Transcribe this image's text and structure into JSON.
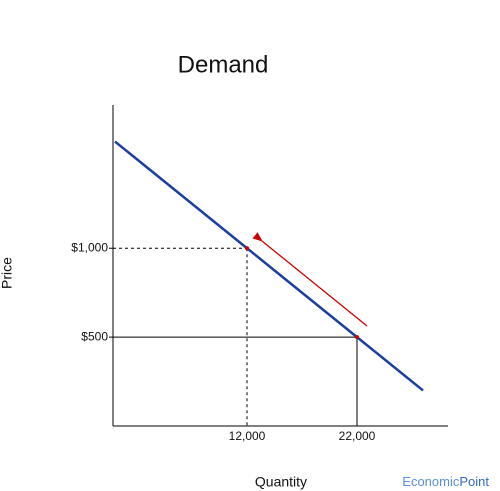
{
  "chart_data": {
    "type": "line",
    "title": "Demand",
    "x_label": "Quantity",
    "y_label": "Price",
    "x": [
      0,
      12000,
      22000,
      28000
    ],
    "series": [
      {
        "color": "#1a3f9e",
        "values": [
          1600,
          1000,
          500,
          200
        ]
      }
    ],
    "xlim": [
      0,
      30000
    ],
    "ylim": [
      0,
      1800
    ],
    "xticks": [
      {
        "value": 12000,
        "label": "12,000"
      },
      {
        "value": 22000,
        "label": "22,000"
      }
    ],
    "yticks": [
      {
        "value": 500,
        "label": "$500"
      },
      {
        "value": 1000,
        "label": "$1,000"
      }
    ],
    "points": [
      {
        "x": 12000,
        "y": 1000,
        "style": "dashed"
      },
      {
        "x": 22000,
        "y": 500,
        "style": "solid"
      }
    ],
    "point_color": "#cc0000"
  },
  "watermark": [
    "Economic",
    "Point"
  ]
}
